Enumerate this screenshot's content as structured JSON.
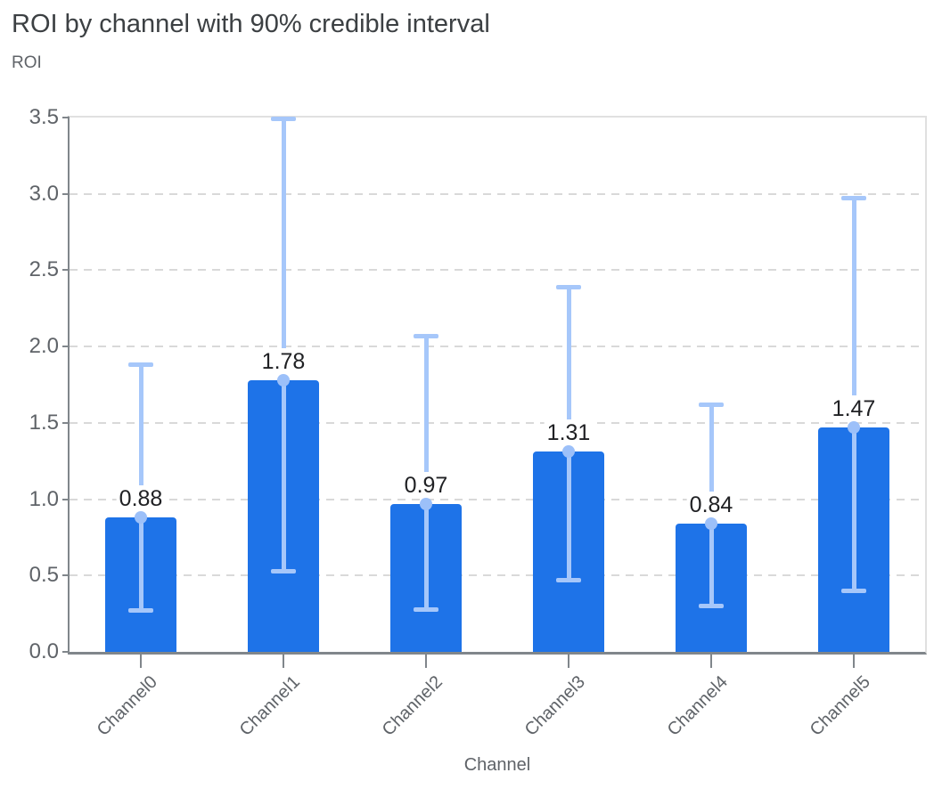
{
  "chart_data": {
    "type": "bar",
    "title": "ROI by channel with 90% credible interval",
    "ylabel": "ROI",
    "xlabel": "Channel",
    "categories": [
      "Channel0",
      "Channel1",
      "Channel2",
      "Channel3",
      "Channel4",
      "Channel5"
    ],
    "values": [
      0.88,
      1.78,
      0.97,
      1.31,
      0.84,
      1.47
    ],
    "bar_value_labels": [
      "0.88",
      "1.78",
      "0.97",
      "1.31",
      "0.84",
      "1.47"
    ],
    "error_bars": {
      "label": "90% credible interval",
      "lower": [
        0.27,
        0.53,
        0.28,
        0.47,
        0.3,
        0.4
      ],
      "upper": [
        1.88,
        3.49,
        2.07,
        2.39,
        1.62,
        2.97
      ]
    },
    "ytick_labels": [
      "0.0",
      "0.5",
      "1.0",
      "1.5",
      "2.0",
      "2.5",
      "3.0",
      "3.5"
    ],
    "ylim": [
      0,
      3.5
    ],
    "grid": "horizontal-dashed",
    "legend_position": "none",
    "colors": {
      "background": "#ffffff",
      "bar_fill": "#1e73e8",
      "error_bar": "#a6c7fa",
      "error_marker": "#9cc0f9",
      "title_text": "#3c4043",
      "axis_text": "#5f6368",
      "value_label_text": "#202124",
      "gridline": "#d9d9d9",
      "axis_line": "#80868b",
      "plot_border": "#e0e0e0"
    }
  }
}
